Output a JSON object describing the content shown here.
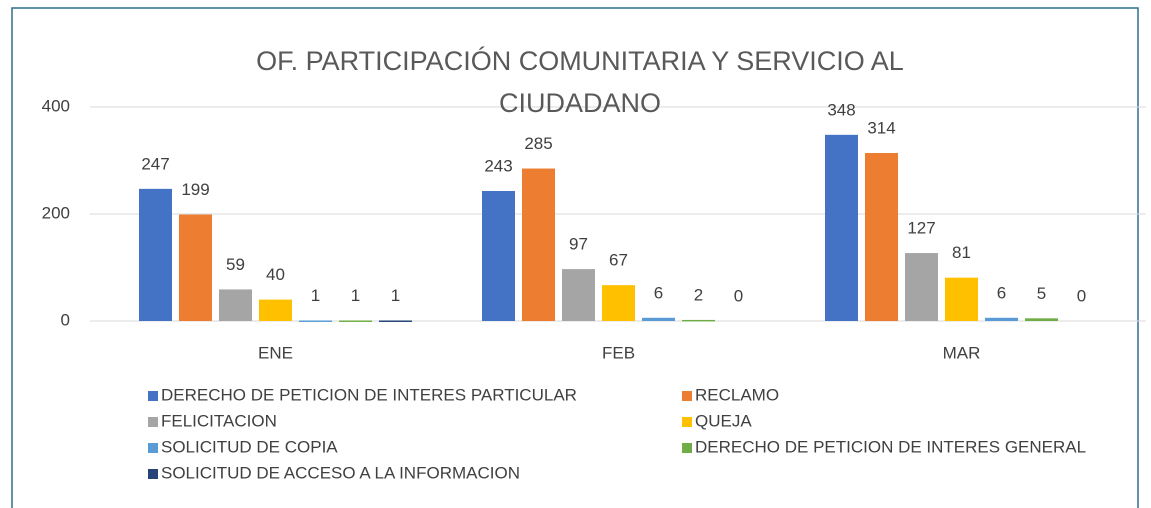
{
  "chart_data": {
    "type": "bar",
    "title": "OF. PARTICIPACIÓN COMUNITARIA Y SERVICIO AL CIUDADANO",
    "categories": [
      "ENE",
      "FEB",
      "MAR"
    ],
    "series": [
      {
        "name": "DERECHO DE PETICION DE INTERES PARTICULAR",
        "color": "#4472c4",
        "values": [
          247,
          243,
          348
        ]
      },
      {
        "name": "RECLAMO",
        "color": "#ed7d31",
        "values": [
          199,
          285,
          314
        ]
      },
      {
        "name": "FELICITACION",
        "color": "#a5a5a5",
        "values": [
          59,
          97,
          127
        ]
      },
      {
        "name": "QUEJA",
        "color": "#ffc000",
        "values": [
          40,
          67,
          81
        ]
      },
      {
        "name": "SOLICITUD DE COPIA",
        "color": "#5b9bd5",
        "values": [
          1,
          6,
          6
        ]
      },
      {
        "name": "DERECHO DE PETICION DE INTERES GENERAL",
        "color": "#70ad47",
        "values": [
          1,
          2,
          5
        ]
      },
      {
        "name": "SOLICITUD DE ACCESO A LA INFORMACION",
        "color": "#264478",
        "values": [
          1,
          0,
          0
        ]
      }
    ],
    "ylim": [
      0,
      400
    ],
    "yticks": [
      0,
      200,
      400
    ],
    "grid": true,
    "legend": "bottom"
  }
}
